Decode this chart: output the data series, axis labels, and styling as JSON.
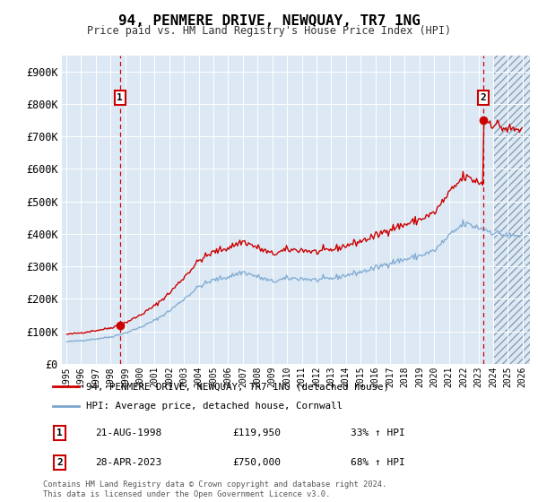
{
  "title": "94, PENMERE DRIVE, NEWQUAY, TR7 1NG",
  "subtitle": "Price paid vs. HM Land Registry's House Price Index (HPI)",
  "ylim": [
    0,
    950000
  ],
  "yticks": [
    0,
    100000,
    200000,
    300000,
    400000,
    500000,
    600000,
    700000,
    800000,
    900000
  ],
  "ytick_labels": [
    "£0",
    "£100K",
    "£200K",
    "£300K",
    "£400K",
    "£500K",
    "£600K",
    "£700K",
    "£800K",
    "£900K"
  ],
  "red_line_color": "#cc0000",
  "blue_line_color": "#7ba7d0",
  "plot_bg_color": "#dce9f5",
  "grid_color": "#ffffff",
  "hatch_color": "#b0c4d8",
  "purchase1_x": 1998.65,
  "purchase1_y": 119950,
  "purchase2_x": 2023.33,
  "purchase2_y": 750000,
  "hatch_start": 2024.0,
  "xlim_left": 1994.7,
  "xlim_right": 2026.5,
  "annotation1_date": "21-AUG-1998",
  "annotation1_price": "£119,950",
  "annotation1_hpi": "33% ↑ HPI",
  "annotation2_date": "28-APR-2023",
  "annotation2_price": "£750,000",
  "annotation2_hpi": "68% ↑ HPI",
  "legend_red_label": "94, PENMERE DRIVE, NEWQUAY, TR7 1NG (detached house)",
  "legend_blue_label": "HPI: Average price, detached house, Cornwall",
  "footer": "Contains HM Land Registry data © Crown copyright and database right 2024.\nThis data is licensed under the Open Government Licence v3.0."
}
